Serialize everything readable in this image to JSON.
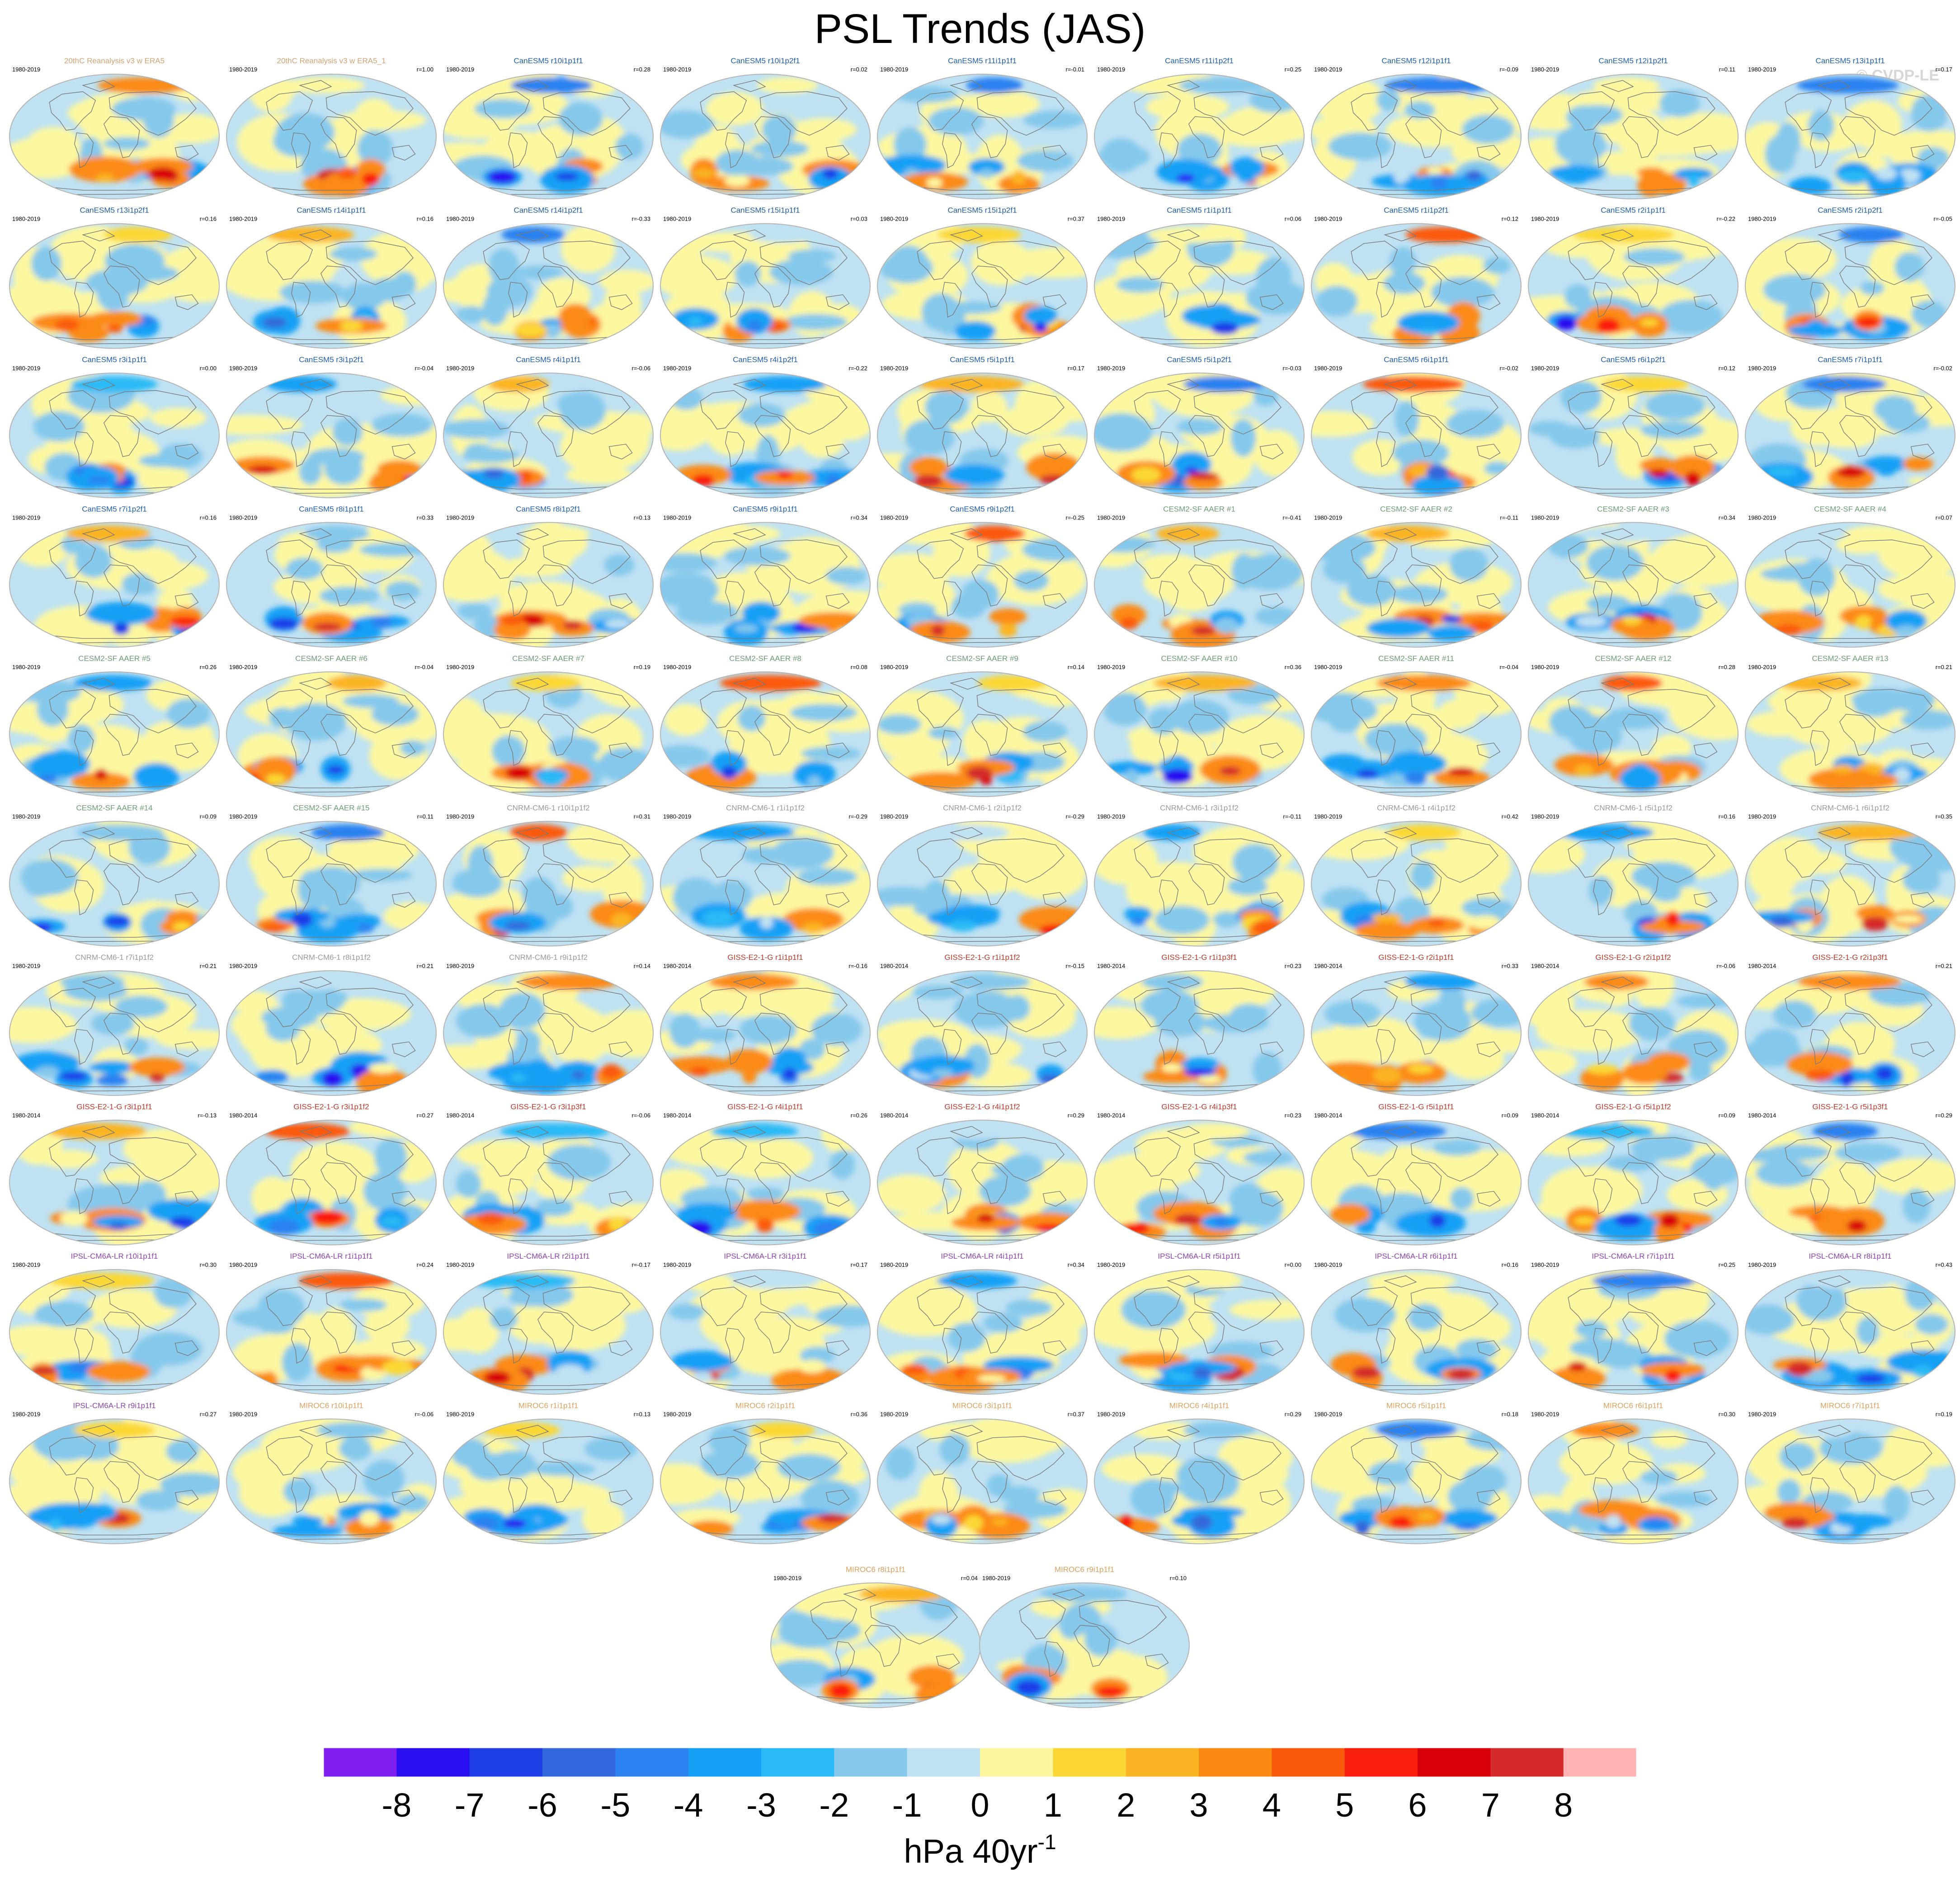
{
  "title": "PSL Trends (JAS)",
  "credit": "© CVDP-LE",
  "units": {
    "base": "hPa 40yr",
    "sup": "-1"
  },
  "colors": {
    "land_outline": "#7a7a7a",
    "globe_border": "#b5b5b5",
    "label_reanalysis": "#d4a373",
    "label_canesm": "#1f5fa8",
    "label_cesm": "#6b9f72",
    "label_cnrm": "#9a9a9a",
    "label_giss": "#c0392b",
    "label_ipsl": "#8e44ad",
    "label_miroc": "#e0a05c"
  },
  "chart_data": {
    "type": "heatmap",
    "projection": "Robinson global map panels",
    "variable": "PSL trend",
    "season": "JAS",
    "colorbar": {
      "ticks": [
        "-8",
        "-7",
        "-6",
        "-5",
        "-4",
        "-3",
        "-2",
        "-1",
        "0",
        "1",
        "2",
        "3",
        "4",
        "5",
        "6",
        "7",
        "8"
      ],
      "colors": [
        "#7f1fef",
        "#2a10f0",
        "#1e3ee8",
        "#3568dc",
        "#2b82f0",
        "#16a0f5",
        "#2abaf5",
        "#85c8ec",
        "#bfe1f2",
        "#fdf7a0",
        "#fbd735",
        "#fbb424",
        "#fb8a12",
        "#fa5a0c",
        "#fa1e0c",
        "#d9000a",
        "#d42a2a",
        "#ffb4b4"
      ],
      "label": "hPa 40yr^-1"
    },
    "panels": [
      {
        "label": "20thC Reanalysis v3 w ERA5",
        "years": "1980-2019",
        "r": "",
        "group": "reanalysis"
      },
      {
        "label": "20thC Reanalysis v3 w ERA5_1",
        "years": "1980-2019",
        "r": "r=1.00",
        "group": "reanalysis"
      },
      {
        "label": "CanESM5 r10i1p1f1",
        "years": "1980-2019",
        "r": "r=0.28",
        "group": "canesm"
      },
      {
        "label": "CanESM5 r10i1p2f1",
        "years": "1980-2019",
        "r": "r=0.02",
        "group": "canesm"
      },
      {
        "label": "CanESM5 r11i1p1f1",
        "years": "1980-2019",
        "r": "r=-0.01",
        "group": "canesm"
      },
      {
        "label": "CanESM5 r11i1p2f1",
        "years": "1980-2019",
        "r": "r=0.25",
        "group": "canesm"
      },
      {
        "label": "CanESM5 r12i1p1f1",
        "years": "1980-2019",
        "r": "r=-0.09",
        "group": "canesm"
      },
      {
        "label": "CanESM5 r12i1p2f1",
        "years": "1980-2019",
        "r": "r=0.11",
        "group": "canesm"
      },
      {
        "label": "CanESM5 r13i1p1f1",
        "years": "1980-2019",
        "r": "r=0.17",
        "group": "canesm"
      },
      {
        "label": "CanESM5 r13i1p2f1",
        "years": "1980-2019",
        "r": "r=0.16",
        "group": "canesm"
      },
      {
        "label": "CanESM5 r14i1p1f1",
        "years": "1980-2019",
        "r": "r=0.16",
        "group": "canesm"
      },
      {
        "label": "CanESM5 r14i1p2f1",
        "years": "1980-2019",
        "r": "r=-0.33",
        "group": "canesm"
      },
      {
        "label": "CanESM5 r15i1p1f1",
        "years": "1980-2019",
        "r": "r=0.03",
        "group": "canesm"
      },
      {
        "label": "CanESM5 r15i1p2f1",
        "years": "1980-2019",
        "r": "r=0.37",
        "group": "canesm"
      },
      {
        "label": "CanESM5 r1i1p1f1",
        "years": "1980-2019",
        "r": "r=0.06",
        "group": "canesm"
      },
      {
        "label": "CanESM5 r1i1p2f1",
        "years": "1980-2019",
        "r": "r=0.12",
        "group": "canesm"
      },
      {
        "label": "CanESM5 r2i1p1f1",
        "years": "1980-2019",
        "r": "r=-0.22",
        "group": "canesm"
      },
      {
        "label": "CanESM5 r2i1p2f1",
        "years": "1980-2019",
        "r": "r=-0.05",
        "group": "canesm"
      },
      {
        "label": "CanESM5 r3i1p1f1",
        "years": "1980-2019",
        "r": "r=0.00",
        "group": "canesm"
      },
      {
        "label": "CanESM5 r3i1p2f1",
        "years": "1980-2019",
        "r": "r=-0.04",
        "group": "canesm"
      },
      {
        "label": "CanESM5 r4i1p1f1",
        "years": "1980-2019",
        "r": "r=-0.06",
        "group": "canesm"
      },
      {
        "label": "CanESM5 r4i1p2f1",
        "years": "1980-2019",
        "r": "r=-0.22",
        "group": "canesm"
      },
      {
        "label": "CanESM5 r5i1p1f1",
        "years": "1980-2019",
        "r": "r=0.17",
        "group": "canesm"
      },
      {
        "label": "CanESM5 r5i1p2f1",
        "years": "1980-2019",
        "r": "r=-0.03",
        "group": "canesm"
      },
      {
        "label": "CanESM5 r6i1p1f1",
        "years": "1980-2019",
        "r": "r=-0.02",
        "group": "canesm"
      },
      {
        "label": "CanESM5 r6i1p2f1",
        "years": "1980-2019",
        "r": "r=0.12",
        "group": "canesm"
      },
      {
        "label": "CanESM5 r7i1p1f1",
        "years": "1980-2019",
        "r": "r=-0.02",
        "group": "canesm"
      },
      {
        "label": "CanESM5 r7i1p2f1",
        "years": "1980-2019",
        "r": "r=0.16",
        "group": "canesm"
      },
      {
        "label": "CanESM5 r8i1p1f1",
        "years": "1980-2019",
        "r": "r=0.33",
        "group": "canesm"
      },
      {
        "label": "CanESM5 r8i1p2f1",
        "years": "1980-2019",
        "r": "r=0.13",
        "group": "canesm"
      },
      {
        "label": "CanESM5 r9i1p1f1",
        "years": "1980-2019",
        "r": "r=0.34",
        "group": "canesm"
      },
      {
        "label": "CanESM5 r9i1p2f1",
        "years": "1980-2019",
        "r": "r=-0.25",
        "group": "canesm"
      },
      {
        "label": "CESM2-SF AAER #1",
        "years": "1980-2019",
        "r": "r=-0.41",
        "group": "cesm"
      },
      {
        "label": "CESM2-SF AAER #2",
        "years": "1980-2019",
        "r": "r=-0.11",
        "group": "cesm"
      },
      {
        "label": "CESM2-SF AAER #3",
        "years": "1980-2019",
        "r": "r=0.34",
        "group": "cesm"
      },
      {
        "label": "CESM2-SF AAER #4",
        "years": "1980-2019",
        "r": "r=0.07",
        "group": "cesm"
      },
      {
        "label": "CESM2-SF AAER #5",
        "years": "1980-2019",
        "r": "r=0.26",
        "group": "cesm"
      },
      {
        "label": "CESM2-SF AAER #6",
        "years": "1980-2019",
        "r": "r=-0.04",
        "group": "cesm"
      },
      {
        "label": "CESM2-SF AAER #7",
        "years": "1980-2019",
        "r": "r=0.19",
        "group": "cesm"
      },
      {
        "label": "CESM2-SF AAER #8",
        "years": "1980-2019",
        "r": "r=0.08",
        "group": "cesm"
      },
      {
        "label": "CESM2-SF AAER #9",
        "years": "1980-2019",
        "r": "r=0.14",
        "group": "cesm"
      },
      {
        "label": "CESM2-SF AAER #10",
        "years": "1980-2019",
        "r": "r=0.36",
        "group": "cesm"
      },
      {
        "label": "CESM2-SF AAER #11",
        "years": "1980-2019",
        "r": "r=-0.04",
        "group": "cesm"
      },
      {
        "label": "CESM2-SF AAER #12",
        "years": "1980-2019",
        "r": "r=0.28",
        "group": "cesm"
      },
      {
        "label": "CESM2-SF AAER #13",
        "years": "1980-2019",
        "r": "r=0.21",
        "group": "cesm"
      },
      {
        "label": "CESM2-SF AAER #14",
        "years": "1980-2019",
        "r": "r=0.09",
        "group": "cesm"
      },
      {
        "label": "CESM2-SF AAER #15",
        "years": "1980-2019",
        "r": "r=0.11",
        "group": "cesm"
      },
      {
        "label": "CNRM-CM6-1 r10i1p1f2",
        "years": "1980-2019",
        "r": "r=0.31",
        "group": "cnrm"
      },
      {
        "label": "CNRM-CM6-1 r1i1p1f2",
        "years": "1980-2019",
        "r": "r=-0.29",
        "group": "cnrm"
      },
      {
        "label": "CNRM-CM6-1 r2i1p1f2",
        "years": "1980-2019",
        "r": "r=-0.29",
        "group": "cnrm"
      },
      {
        "label": "CNRM-CM6-1 r3i1p1f2",
        "years": "1980-2019",
        "r": "r=-0.11",
        "group": "cnrm"
      },
      {
        "label": "CNRM-CM6-1 r4i1p1f2",
        "years": "1980-2019",
        "r": "r=0.42",
        "group": "cnrm"
      },
      {
        "label": "CNRM-CM6-1 r5i1p1f2",
        "years": "1980-2019",
        "r": "r=0.16",
        "group": "cnrm"
      },
      {
        "label": "CNRM-CM6-1 r6i1p1f2",
        "years": "1980-2019",
        "r": "r=0.35",
        "group": "cnrm"
      },
      {
        "label": "CNRM-CM6-1 r7i1p1f2",
        "years": "1980-2019",
        "r": "r=0.21",
        "group": "cnrm"
      },
      {
        "label": "CNRM-CM6-1 r8i1p1f2",
        "years": "1980-2019",
        "r": "r=0.21",
        "group": "cnrm"
      },
      {
        "label": "CNRM-CM6-1 r9i1p1f2",
        "years": "1980-2019",
        "r": "r=0.14",
        "group": "cnrm"
      },
      {
        "label": "GISS-E2-1-G r1i1p1f1",
        "years": "1980-2014",
        "r": "r=-0.16",
        "group": "giss"
      },
      {
        "label": "GISS-E2-1-G r1i1p1f2",
        "years": "1980-2014",
        "r": "r=-0.15",
        "group": "giss"
      },
      {
        "label": "GISS-E2-1-G r1i1p3f1",
        "years": "1980-2014",
        "r": "r=0.23",
        "group": "giss"
      },
      {
        "label": "GISS-E2-1-G r2i1p1f1",
        "years": "1980-2014",
        "r": "r=0.33",
        "group": "giss"
      },
      {
        "label": "GISS-E2-1-G r2i1p1f2",
        "years": "1980-2014",
        "r": "r=-0.06",
        "group": "giss"
      },
      {
        "label": "GISS-E2-1-G r2i1p3f1",
        "years": "1980-2014",
        "r": "r=0.21",
        "group": "giss"
      },
      {
        "label": "GISS-E2-1-G r3i1p1f1",
        "years": "1980-2014",
        "r": "r=-0.13",
        "group": "giss"
      },
      {
        "label": "GISS-E2-1-G r3i1p1f2",
        "years": "1980-2014",
        "r": "r=0.27",
        "group": "giss"
      },
      {
        "label": "GISS-E2-1-G r3i1p3f1",
        "years": "1980-2014",
        "r": "r=-0.06",
        "group": "giss"
      },
      {
        "label": "GISS-E2-1-G r4i1p1f1",
        "years": "1980-2014",
        "r": "r=0.26",
        "group": "giss"
      },
      {
        "label": "GISS-E2-1-G r4i1p1f2",
        "years": "1980-2014",
        "r": "r=0.29",
        "group": "giss"
      },
      {
        "label": "GISS-E2-1-G r4i1p3f1",
        "years": "1980-2014",
        "r": "r=0.23",
        "group": "giss"
      },
      {
        "label": "GISS-E2-1-G r5i1p1f1",
        "years": "1980-2014",
        "r": "r=0.09",
        "group": "giss"
      },
      {
        "label": "GISS-E2-1-G r5i1p1f2",
        "years": "1980-2014",
        "r": "r=0.09",
        "group": "giss"
      },
      {
        "label": "GISS-E2-1-G r5i1p3f1",
        "years": "1980-2014",
        "r": "r=0.29",
        "group": "giss"
      },
      {
        "label": "IPSL-CM6A-LR r10i1p1f1",
        "years": "1980-2019",
        "r": "r=0.30",
        "group": "ipsl"
      },
      {
        "label": "IPSL-CM6A-LR r1i1p1f1",
        "years": "1980-2019",
        "r": "r=0.24",
        "group": "ipsl"
      },
      {
        "label": "IPSL-CM6A-LR r2i1p1f1",
        "years": "1980-2019",
        "r": "r=-0.17",
        "group": "ipsl"
      },
      {
        "label": "IPSL-CM6A-LR r3i1p1f1",
        "years": "1980-2019",
        "r": "r=0.17",
        "group": "ipsl"
      },
      {
        "label": "IPSL-CM6A-LR r4i1p1f1",
        "years": "1980-2019",
        "r": "r=0.34",
        "group": "ipsl"
      },
      {
        "label": "IPSL-CM6A-LR r5i1p1f1",
        "years": "1980-2019",
        "r": "r=0.00",
        "group": "ipsl"
      },
      {
        "label": "IPSL-CM6A-LR r6i1p1f1",
        "years": "1980-2019",
        "r": "r=0.16",
        "group": "ipsl"
      },
      {
        "label": "IPSL-CM6A-LR r7i1p1f1",
        "years": "1980-2019",
        "r": "r=0.25",
        "group": "ipsl"
      },
      {
        "label": "IPSL-CM6A-LR r8i1p1f1",
        "years": "1980-2019",
        "r": "r=0.43",
        "group": "ipsl"
      },
      {
        "label": "IPSL-CM6A-LR r9i1p1f1",
        "years": "1980-2019",
        "r": "r=0.27",
        "group": "ipsl"
      },
      {
        "label": "MIROC6 r10i1p1f1",
        "years": "1980-2019",
        "r": "r=-0.06",
        "group": "miroc"
      },
      {
        "label": "MIROC6 r1i1p1f1",
        "years": "1980-2019",
        "r": "r=0.13",
        "group": "miroc"
      },
      {
        "label": "MIROC6 r2i1p1f1",
        "years": "1980-2019",
        "r": "r=0.36",
        "group": "miroc"
      },
      {
        "label": "MIROC6 r3i1p1f1",
        "years": "1980-2019",
        "r": "r=0.37",
        "group": "miroc"
      },
      {
        "label": "MIROC6 r4i1p1f1",
        "years": "1980-2019",
        "r": "r=0.29",
        "group": "miroc"
      },
      {
        "label": "MIROC6 r5i1p1f1",
        "years": "1980-2019",
        "r": "r=0.18",
        "group": "miroc"
      },
      {
        "label": "MIROC6 r6i1p1f1",
        "years": "1980-2019",
        "r": "r=0.30",
        "group": "miroc"
      },
      {
        "label": "MIROC6 r7i1p1f1",
        "years": "1980-2019",
        "r": "r=0.19",
        "group": "miroc"
      },
      {
        "label": "MIROC6 r8i1p1f1",
        "years": "1980-2019",
        "r": "r=0.04",
        "group": "miroc"
      },
      {
        "label": "MIROC6 r9i1p1f1",
        "years": "1980-2019",
        "r": "r=0.10",
        "group": "miroc"
      }
    ]
  }
}
